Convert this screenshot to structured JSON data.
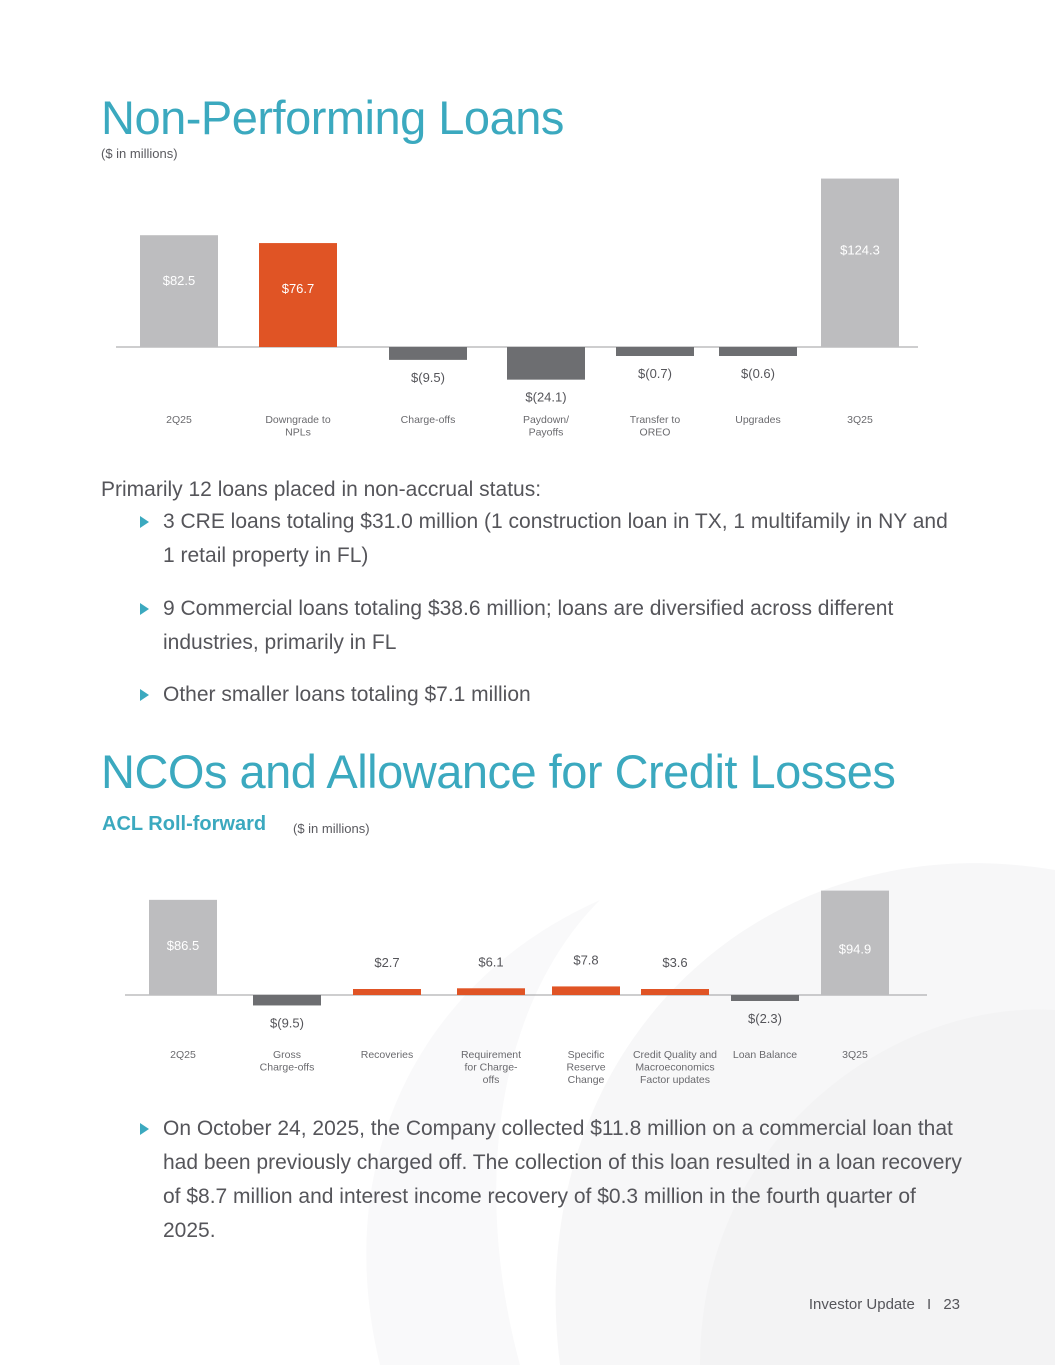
{
  "npl_section": {
    "title": "Non-Performing Loans",
    "units": "($ in millions)",
    "lead": "Primarily 12 loans placed in non-accrual status:",
    "bullets": [
      "3 CRE loans totaling $31.0 million (1 construction loan in TX, 1 multifamily in NY and 1 retail property in FL)",
      "9 Commercial loans totaling $38.6 million; loans are diversified across different industries, primarily in FL",
      "Other smaller loans totaling $7.1 million"
    ]
  },
  "nco_section": {
    "title": "NCOs and Allowance for Credit Losses",
    "subtitle": "ACL Roll-forward",
    "units": "($ in millions)",
    "bullet": "On October 24, 2025, the Company collected $11.8 million on a commercial loan that had been previously charged off. The collection of this loan resulted in a loan recovery of $8.7 million and interest income recovery of $0.3 million in the fourth quarter of 2025."
  },
  "footer": {
    "label": "Investor Update",
    "separator": "I",
    "page": "23"
  },
  "colors": {
    "accent": "#3ba9bf",
    "total_bar": "#bdbdbf",
    "increase_bar": "#e05425",
    "decrease_bar": "#6d6e71"
  },
  "chart_data": [
    {
      "type": "bar",
      "subtype": "waterfall",
      "title": "Non-Performing Loans",
      "units": "($ in millions)",
      "categories": [
        [
          "2Q25"
        ],
        [
          "Downgrade to",
          "NPLs"
        ],
        [
          "Charge-offs"
        ],
        [
          "Paydown/",
          "Payoffs"
        ],
        [
          "Transfer to",
          "OREO"
        ],
        [
          "Upgrades"
        ],
        [
          "3Q25"
        ]
      ],
      "values": [
        82.5,
        76.7,
        -9.5,
        -24.1,
        -0.7,
        -0.6,
        124.3
      ],
      "labels": [
        "$82.5",
        "$76.7",
        "$(9.5)",
        "$(24.1)",
        "$(0.7)",
        "$(0.6)",
        "$124.3"
      ],
      "kinds": [
        "total",
        "increase",
        "decrease",
        "decrease",
        "decrease",
        "decrease",
        "total"
      ]
    },
    {
      "type": "bar",
      "subtype": "waterfall",
      "title": "ACL Roll-forward",
      "units": "($ in millions)",
      "categories": [
        [
          "2Q25"
        ],
        [
          "Gross",
          "Charge-offs"
        ],
        [
          "Recoveries"
        ],
        [
          "Requirement",
          "for Charge-",
          "offs"
        ],
        [
          "Specific",
          "Reserve",
          "Change"
        ],
        [
          "Credit Quality and",
          "Macroeconomics",
          "Factor updates"
        ],
        [
          "Loan Balance"
        ],
        [
          "3Q25"
        ]
      ],
      "values": [
        86.5,
        -9.5,
        2.7,
        6.1,
        7.8,
        3.6,
        -2.3,
        94.9
      ],
      "labels": [
        "$86.5",
        "$(9.5)",
        "$2.7",
        "$6.1",
        "$7.8",
        "$3.6",
        "$(2.3)",
        "$94.9"
      ],
      "kinds": [
        "total",
        "decrease",
        "increase",
        "increase",
        "increase",
        "increase",
        "decrease",
        "total"
      ]
    }
  ]
}
